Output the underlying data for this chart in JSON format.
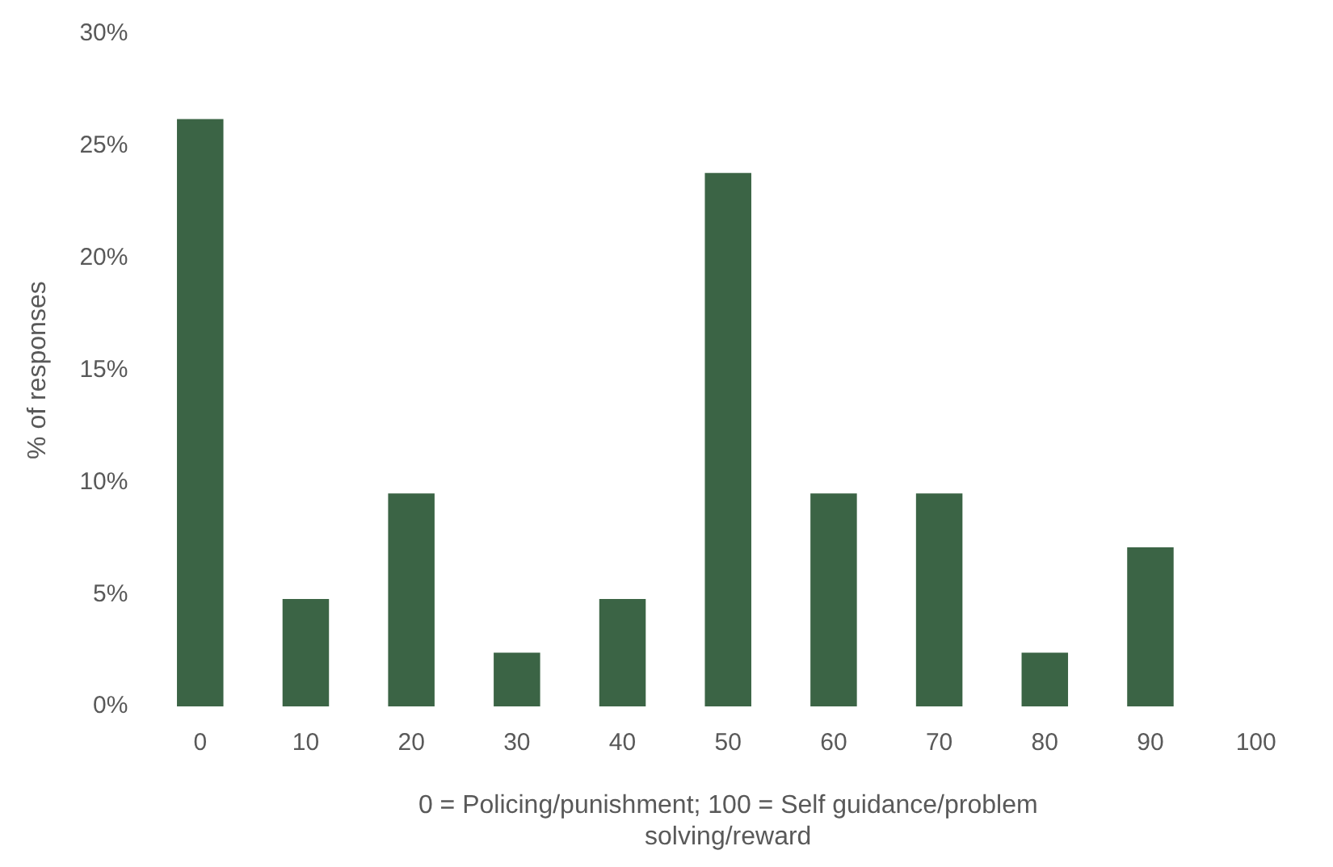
{
  "chart_data": {
    "type": "bar",
    "ylabel": "% of responses",
    "xlabel": "0 = Policing/punishment; 100 = Self guidance/problem solving/reward",
    "categories": [
      "0",
      "10",
      "20",
      "30",
      "40",
      "50",
      "60",
      "70",
      "80",
      "90",
      "100"
    ],
    "values": [
      26.2,
      4.8,
      9.5,
      2.4,
      4.8,
      23.8,
      9.5,
      9.5,
      2.4,
      7.1,
      0
    ],
    "color": "#3b6445",
    "ylim": [
      0,
      30
    ],
    "yticks": [
      {
        "value": 0,
        "label": "0%"
      },
      {
        "value": 5,
        "label": "5%"
      },
      {
        "value": 10,
        "label": "10%"
      },
      {
        "value": 15,
        "label": "15%"
      },
      {
        "value": 20,
        "label": "20%"
      },
      {
        "value": 25,
        "label": "25%"
      },
      {
        "value": 30,
        "label": "30%"
      }
    ],
    "grid": false,
    "legend": false
  }
}
